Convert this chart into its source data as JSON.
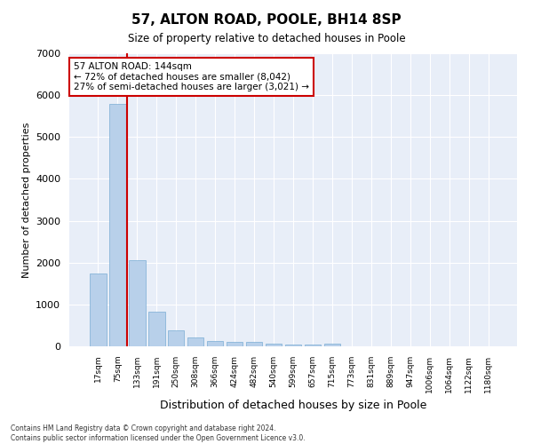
{
  "title": "57, ALTON ROAD, POOLE, BH14 8SP",
  "subtitle": "Size of property relative to detached houses in Poole",
  "xlabel": "Distribution of detached houses by size in Poole",
  "ylabel": "Number of detached properties",
  "bar_color": "#b8d0ea",
  "bar_edge_color": "#7aadd4",
  "background_color": "#e8eef8",
  "grid_color": "#ffffff",
  "annotation_box_color": "#cc0000",
  "property_line_color": "#cc0000",
  "categories": [
    "17sqm",
    "75sqm",
    "133sqm",
    "191sqm",
    "250sqm",
    "308sqm",
    "366sqm",
    "424sqm",
    "482sqm",
    "540sqm",
    "599sqm",
    "657sqm",
    "715sqm",
    "773sqm",
    "831sqm",
    "889sqm",
    "947sqm",
    "1006sqm",
    "1064sqm",
    "1122sqm",
    "1180sqm"
  ],
  "values": [
    1750,
    5800,
    2060,
    820,
    380,
    220,
    130,
    110,
    99,
    70,
    50,
    50,
    60,
    0,
    0,
    0,
    0,
    0,
    0,
    0,
    0
  ],
  "ylim": [
    0,
    7000
  ],
  "yticks": [
    0,
    1000,
    2000,
    3000,
    4000,
    5000,
    6000,
    7000
  ],
  "property_bar_index": 2,
  "annotation_text_line1": "57 ALTON ROAD: 144sqm",
  "annotation_text_line2": "← 72% of detached houses are smaller (8,042)",
  "annotation_text_line3": "27% of semi-detached houses are larger (3,021) →",
  "footer_line1": "Contains HM Land Registry data © Crown copyright and database right 2024.",
  "footer_line2": "Contains public sector information licensed under the Open Government Licence v3.0."
}
